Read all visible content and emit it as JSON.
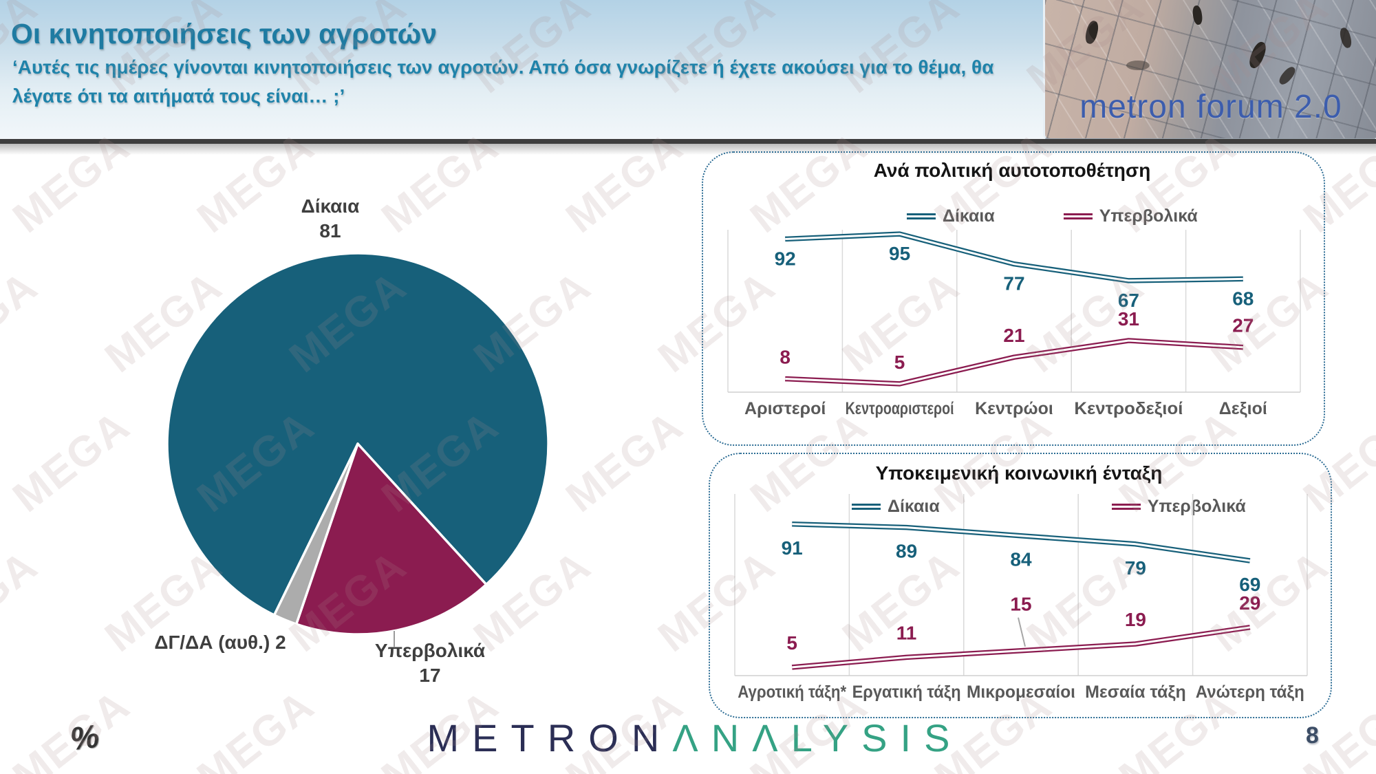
{
  "header": {
    "title": "Οι κινητοποιήσεις των αγροτών",
    "subtitle_line1": "‘Αυτές τις ημέρες γίνονται κινητοποιήσεις των αγροτών. Από όσα γνωρίζετε ή έχετε ακούσει για το θέμα, θα",
    "subtitle_line2": "λέγατε ότι τα αιτήματά τους είναι… ;’",
    "forum_logo_text": "metron forum 2.0"
  },
  "watermark": {
    "text": "MEGA"
  },
  "footer": {
    "brand_metron": "METRON",
    "brand_analysis": "ΛNΛLYSIS",
    "percent_note": "%",
    "page_number": "8"
  },
  "colors": {
    "teal": "#17607a",
    "maroon": "#8b1c50",
    "slice_gray": "#acacac",
    "title_blue": "#1e7ba2",
    "brand_navy": "#2b2e55",
    "brand_green": "#35a284",
    "gridline": "#d9d9d9",
    "label_gray": "#595959",
    "panel_border": "#2a6b93"
  },
  "chart_data": [
    {
      "type": "pie",
      "title": "",
      "start_angle_deg": 206,
      "slices": [
        {
          "label": "Δίκαια",
          "value": 81,
          "color": "#17607a"
        },
        {
          "label": "Υπερβολικά",
          "value": 17,
          "color": "#8b1c50"
        },
        {
          "label": "ΔΓ/ΔΑ (αυθ.)",
          "value": 2,
          "color": "#acacac"
        }
      ]
    },
    {
      "type": "line",
      "title": "Ανά πολιτική αυτοτοποθέτηση",
      "categories": [
        "Αριστεροί",
        "Κεντροαριστεροί",
        "Κεντρώοι",
        "Κεντροδεξιοί",
        "Δεξιοί"
      ],
      "series": [
        {
          "name": "Δίκαια",
          "color": "#17607a",
          "values": [
            92,
            95,
            77,
            67,
            68
          ]
        },
        {
          "name": "Υπερβολικά",
          "color": "#8b1c50",
          "values": [
            8,
            5,
            21,
            31,
            27
          ]
        }
      ],
      "ylim": [
        0,
        100
      ],
      "grid": "vertical",
      "legend_position": "top"
    },
    {
      "type": "line",
      "title": "Υποκειμενική κοινωνική ένταξη",
      "categories": [
        "Αγροτική τάξη*",
        "Εργατική τάξη",
        "Μικρομεσαίοι",
        "Μεσαία τάξη",
        "Ανώτερη τάξη"
      ],
      "series": [
        {
          "name": "Δίκαια",
          "color": "#17607a",
          "values": [
            91,
            89,
            84,
            79,
            69
          ]
        },
        {
          "name": "Υπερβολικά",
          "color": "#8b1c50",
          "values": [
            5,
            11,
            15,
            19,
            29
          ]
        }
      ],
      "ylim": [
        0,
        100
      ],
      "grid": "vertical",
      "legend_position": "top-inside"
    }
  ]
}
